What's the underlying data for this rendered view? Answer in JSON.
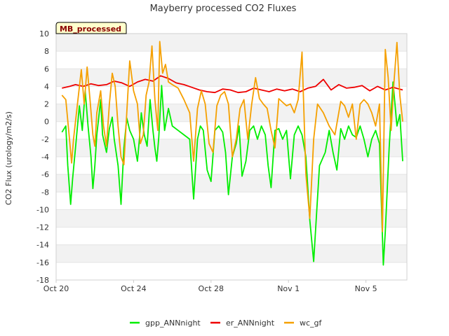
{
  "chart_data": {
    "type": "line",
    "title": "Mayberry processed CO2 Fluxes",
    "badge": "MB_processed",
    "xlabel": "",
    "ylabel": "CO2 Flux (urology/m2/s)",
    "ylim": [
      -18,
      10
    ],
    "yticks": [
      -18,
      -16,
      -14,
      -12,
      -10,
      -8,
      -6,
      -4,
      -2,
      0,
      2,
      4,
      6,
      8,
      10
    ],
    "xlim": [
      0,
      18.6
    ],
    "xticks": [
      {
        "value": 0,
        "label": "Oct 20"
      },
      {
        "value": 4,
        "label": "Oct 24"
      },
      {
        "value": 8,
        "label": "Oct 28"
      },
      {
        "value": 12,
        "label": "Nov 1"
      },
      {
        "value": 16,
        "label": "Nov 5"
      }
    ],
    "x_unit": "days since Oct 20",
    "grid": true,
    "legend_position": "bottom-center",
    "series": [
      {
        "name": "gpp_ANNnight",
        "color": "#00ee00",
        "x": [
          0.3,
          0.5,
          0.6,
          0.75,
          0.85,
          1.0,
          1.2,
          1.35,
          1.5,
          1.65,
          1.8,
          1.9,
          2.0,
          2.1,
          2.3,
          2.4,
          2.6,
          2.75,
          2.9,
          3.0,
          3.2,
          3.35,
          3.5,
          3.65,
          3.8,
          4.0,
          4.2,
          4.3,
          4.4,
          4.55,
          4.7,
          4.85,
          5.0,
          5.1,
          5.2,
          5.3,
          5.45,
          5.6,
          5.8,
          6.0,
          6.3,
          6.6,
          6.9,
          7.1,
          7.3,
          7.45,
          7.6,
          7.8,
          8.0,
          8.2,
          8.4,
          8.6,
          8.75,
          8.9,
          9.1,
          9.3,
          9.45,
          9.6,
          9.8,
          10.0,
          10.2,
          10.4,
          10.6,
          10.8,
          10.95,
          11.1,
          11.3,
          11.5,
          11.7,
          11.9,
          12.1,
          12.3,
          12.5,
          12.7,
          12.9,
          13.1,
          13.3,
          13.6,
          13.9,
          14.1,
          14.3,
          14.5,
          14.7,
          14.9,
          15.1,
          15.3,
          15.5,
          15.7,
          15.9,
          16.1,
          16.3,
          16.5,
          16.7,
          16.9,
          17.0,
          17.2,
          17.4,
          17.6,
          17.75,
          17.9
        ],
        "values": [
          -1.2,
          -0.5,
          -5.0,
          -9.4,
          -6.5,
          -3.0,
          1.8,
          -1.0,
          3.5,
          -0.5,
          -4.0,
          -7.6,
          -5.0,
          -1.5,
          2.5,
          -1.5,
          -3.5,
          -0.8,
          0.5,
          -2.0,
          -5.0,
          -9.4,
          -3.0,
          0.4,
          -1.0,
          -2.0,
          -4.5,
          -2.0,
          1.0,
          -1.5,
          -2.8,
          2.5,
          -1.0,
          -3.0,
          -4.5,
          -1.8,
          4.1,
          -1.0,
          1.5,
          -0.5,
          -1.0,
          -1.5,
          -2.0,
          -8.8,
          -2.0,
          -0.5,
          -1.0,
          -5.5,
          -6.8,
          -1.0,
          -0.5,
          -1.2,
          -3.5,
          -8.3,
          -4.0,
          -2.5,
          -0.5,
          -6.2,
          -4.5,
          -1.0,
          -0.5,
          -2.0,
          -0.5,
          -1.5,
          -5.0,
          -7.5,
          -1.0,
          -0.8,
          -2.0,
          -1.0,
          -6.5,
          -1.5,
          -0.5,
          -1.5,
          -4.0,
          -11.2,
          -15.9,
          -5.0,
          -3.5,
          -1.0,
          -3.5,
          -5.5,
          -0.8,
          -2.0,
          -0.5,
          -1.5,
          -1.8,
          -0.5,
          -2.0,
          -4.0,
          -2.0,
          -1.0,
          -2.5,
          -16.3,
          -12.5,
          -3.0,
          4.5,
          -0.5,
          0.8,
          -4.5
        ]
      },
      {
        "name": "er_ANNnight",
        "color": "#ee0000",
        "x": [
          0.3,
          0.7,
          1.0,
          1.4,
          1.8,
          2.2,
          2.6,
          3.0,
          3.4,
          3.8,
          4.2,
          4.6,
          5.0,
          5.4,
          5.8,
          6.2,
          6.6,
          7.0,
          7.4,
          7.8,
          8.2,
          8.6,
          9.0,
          9.4,
          9.8,
          10.2,
          10.6,
          11.0,
          11.4,
          11.8,
          12.2,
          12.6,
          13.0,
          13.4,
          13.8,
          14.2,
          14.6,
          15.0,
          15.4,
          15.8,
          16.2,
          16.6,
          17.0,
          17.4,
          17.9
        ],
        "values": [
          3.8,
          4.0,
          4.2,
          4.0,
          4.3,
          4.1,
          4.2,
          4.6,
          4.4,
          4.0,
          4.5,
          4.8,
          4.6,
          5.2,
          4.9,
          4.4,
          4.2,
          3.9,
          3.6,
          3.4,
          3.3,
          3.7,
          3.6,
          3.3,
          3.4,
          3.8,
          3.6,
          3.4,
          3.7,
          3.5,
          3.7,
          3.4,
          3.8,
          4.0,
          4.8,
          3.6,
          4.2,
          3.8,
          3.9,
          4.1,
          3.5,
          4.0,
          3.6,
          3.9,
          3.6
        ]
      },
      {
        "name": "wc_gf",
        "color": "#f5a000",
        "x": [
          0.3,
          0.5,
          0.65,
          0.8,
          0.9,
          1.1,
          1.3,
          1.45,
          1.6,
          1.75,
          1.9,
          2.0,
          2.1,
          2.3,
          2.45,
          2.6,
          2.75,
          2.9,
          3.05,
          3.2,
          3.35,
          3.5,
          3.65,
          3.8,
          4.0,
          4.2,
          4.35,
          4.5,
          4.65,
          4.8,
          4.95,
          5.1,
          5.25,
          5.35,
          5.5,
          5.65,
          5.8,
          6.0,
          6.3,
          6.6,
          6.9,
          7.1,
          7.3,
          7.5,
          7.7,
          7.9,
          8.1,
          8.3,
          8.5,
          8.7,
          8.9,
          9.1,
          9.3,
          9.5,
          9.7,
          9.9,
          10.1,
          10.3,
          10.5,
          10.7,
          10.9,
          11.1,
          11.3,
          11.5,
          11.7,
          11.9,
          12.1,
          12.3,
          12.5,
          12.7,
          12.9,
          13.1,
          13.3,
          13.5,
          13.8,
          14.1,
          14.4,
          14.7,
          14.9,
          15.1,
          15.3,
          15.5,
          15.7,
          15.9,
          16.1,
          16.3,
          16.5,
          16.7,
          16.85,
          17.0,
          17.15,
          17.3,
          17.45,
          17.6,
          17.75,
          17.9
        ],
        "values": [
          3.0,
          2.5,
          -1.0,
          -4.7,
          -2.0,
          2.0,
          5.9,
          2.0,
          6.2,
          2.5,
          -1.5,
          -2.8,
          1.0,
          3.5,
          -0.5,
          -2.8,
          2.0,
          5.5,
          4.0,
          -0.5,
          -4.0,
          -4.9,
          1.0,
          6.9,
          3.5,
          2.0,
          -2.5,
          -1.5,
          3.0,
          4.5,
          8.6,
          2.5,
          -1.0,
          9.1,
          5.5,
          6.5,
          4.5,
          4.2,
          3.8,
          2.5,
          1.0,
          -4.5,
          1.5,
          3.5,
          2.0,
          -2.5,
          -3.5,
          1.8,
          3.0,
          3.4,
          2.0,
          -4.0,
          -2.0,
          1.5,
          2.5,
          -2.0,
          2.0,
          5.0,
          2.6,
          2.0,
          1.5,
          -1.0,
          -3.0,
          2.6,
          2.2,
          1.8,
          2.0,
          1.0,
          2.5,
          7.9,
          -6.0,
          -11.0,
          -2.0,
          2.0,
          1.0,
          -0.5,
          -1.5,
          2.3,
          1.8,
          0.5,
          2.0,
          -2.0,
          2.0,
          2.5,
          2.0,
          1.0,
          -0.5,
          2.0,
          -12.5,
          8.2,
          5.0,
          -1.0,
          4.5,
          9.0,
          3.0,
          0.0
        ]
      }
    ]
  }
}
